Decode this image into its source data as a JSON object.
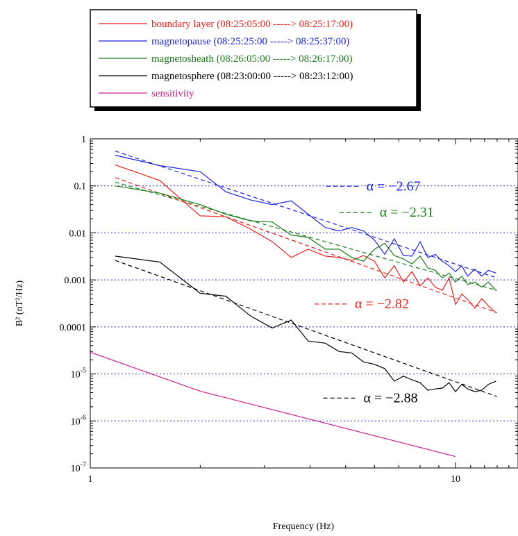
{
  "chart_data": {
    "type": "line",
    "xlabel": "Frequency (Hz)",
    "ylabel": "B² (nT²/Hz)",
    "xscale": "log",
    "yscale": "log",
    "xlim": [
      1,
      15
    ],
    "ylim": [
      1e-07,
      1
    ],
    "x_ticks": [
      {
        "value": 1,
        "label": "1"
      },
      {
        "value": 10,
        "label": "10"
      }
    ],
    "y_ticks": [
      {
        "value": 1,
        "base": "1",
        "exp": ""
      },
      {
        "value": 0.1,
        "base": "0.1",
        "exp": ""
      },
      {
        "value": 0.01,
        "base": "0.01",
        "exp": ""
      },
      {
        "value": 0.001,
        "base": "0.001",
        "exp": ""
      },
      {
        "value": 0.0001,
        "base": "0.0001",
        "exp": ""
      },
      {
        "value": 1e-05,
        "base": "10",
        "exp": "-5"
      },
      {
        "value": 1e-06,
        "base": "10",
        "exp": "-6"
      },
      {
        "value": 1e-07,
        "base": "10",
        "exp": "-7"
      }
    ],
    "grid": "dotted horizontal at each decade",
    "legend_position": "top, above plot",
    "series": [
      {
        "name": "boundary layer (08:25:05:00 -----> 08:25:17:00)",
        "color": "#e8201c",
        "x": [
          1.17,
          1.55,
          2.0,
          2.35,
          2.75,
          3.15,
          3.55,
          3.95,
          4.4,
          4.8,
          5.2,
          5.6,
          6.0,
          6.4,
          6.8,
          7.2,
          7.6,
          8.0,
          8.4,
          8.8,
          9.2,
          9.6,
          10.0,
          10.4,
          10.8,
          11.3,
          11.8,
          12.3,
          12.9
        ],
        "y": [
          0.28,
          0.13,
          0.023,
          0.022,
          0.012,
          0.0065,
          0.003,
          0.0045,
          0.0032,
          0.003,
          0.0026,
          0.0033,
          0.0025,
          0.0011,
          0.002,
          0.0009,
          0.0015,
          0.00075,
          0.0011,
          0.0007,
          0.0006,
          0.0011,
          0.0003,
          0.0005,
          0.00038,
          0.00025,
          0.0004,
          0.00028,
          0.0002
        ]
      },
      {
        "name": "magnetopause  (08:25:25:00 -----> 08:25:37:00)",
        "color": "#1c24e0",
        "x": [
          1.17,
          1.55,
          2.0,
          2.35,
          2.75,
          3.15,
          3.55,
          3.95,
          4.4,
          4.8,
          5.2,
          5.6,
          6.0,
          6.4,
          6.8,
          7.2,
          7.6,
          8.0,
          8.4,
          8.8,
          9.2,
          9.6,
          10.0,
          10.4,
          10.8,
          11.3,
          11.8,
          12.3,
          12.9
        ],
        "y": [
          0.45,
          0.27,
          0.2,
          0.075,
          0.05,
          0.04,
          0.048,
          0.025,
          0.013,
          0.011,
          0.013,
          0.011,
          0.007,
          0.0035,
          0.0075,
          0.0033,
          0.0032,
          0.0065,
          0.003,
          0.0035,
          0.0025,
          0.002,
          0.0015,
          0.002,
          0.0012,
          0.0017,
          0.0012,
          0.0016,
          0.0014
        ]
      },
      {
        "name": "magnetosheath (08:26:05:00 -----> 08:26:17:00)",
        "color": "#1a7a1a",
        "x": [
          1.17,
          1.55,
          2.0,
          2.35,
          2.75,
          3.15,
          3.55,
          3.95,
          4.4,
          4.8,
          5.2,
          5.6,
          6.0,
          6.4,
          6.8,
          7.2,
          7.6,
          8.0,
          8.4,
          8.8,
          9.2,
          9.6,
          10.0,
          10.4,
          10.8,
          11.3,
          11.8,
          12.3,
          12.9
        ],
        "y": [
          0.1,
          0.07,
          0.04,
          0.025,
          0.018,
          0.017,
          0.009,
          0.008,
          0.0045,
          0.0045,
          0.003,
          0.0025,
          0.0045,
          0.006,
          0.0033,
          0.0028,
          0.0022,
          0.0032,
          0.0018,
          0.0016,
          0.0011,
          0.0014,
          0.0009,
          0.0012,
          0.0008,
          0.0009,
          0.0007,
          0.0009,
          0.0006
        ]
      },
      {
        "name": "magnetosphere (08:23:00:00 -----> 08:23:12:00)",
        "color": "#000000",
        "x": [
          1.17,
          1.55,
          2.0,
          2.35,
          2.75,
          3.15,
          3.55,
          3.95,
          4.4,
          4.8,
          5.2,
          5.6,
          6.0,
          6.4,
          6.8,
          7.2,
          7.6,
          8.0,
          8.4,
          8.8,
          9.2,
          9.6,
          10.0,
          10.4,
          10.8,
          11.3,
          11.8,
          12.3,
          12.9
        ],
        "y": [
          0.0032,
          0.0024,
          0.00052,
          0.00045,
          0.00017,
          9.5e-05,
          0.00014,
          5e-05,
          4.5e-05,
          3e-05,
          2.8e-05,
          1.8e-05,
          1.6e-05,
          1.3e-05,
          7e-06,
          9e-06,
          7.5e-06,
          6.5e-06,
          4.5e-06,
          4.8e-06,
          5e-06,
          6.5e-06,
          4.2e-06,
          6e-06,
          4.8e-06,
          4.2e-06,
          4.5e-06,
          6e-06,
          7e-06
        ]
      },
      {
        "name": "sensitivity",
        "color": "#d0208a",
        "x": [
          1.0,
          2.0,
          10.0
        ],
        "y": [
          2.9e-05,
          4.3e-06,
          1.75e-07
        ]
      }
    ],
    "fits": [
      {
        "color": "#1c24e0",
        "x": [
          1.17,
          13.0
        ],
        "y": [
          0.55,
          0.0011
        ],
        "alpha_label": "α = −2.67",
        "label_x": 5.7,
        "label_y": 0.08
      },
      {
        "color": "#1a7a1a",
        "x": [
          1.17,
          13.0
        ],
        "y": [
          0.12,
          0.0006
        ],
        "alpha_label": "α = −2.31",
        "label_x": 6.2,
        "label_y": 0.022
      },
      {
        "color": "#e8201c",
        "x": [
          1.17,
          13.0
        ],
        "y": [
          0.15,
          0.0002
        ],
        "alpha_label": "α = −2.82",
        "label_x": 5.3,
        "label_y": 0.00025
      },
      {
        "color": "#000000",
        "x": [
          1.17,
          13.0
        ],
        "y": [
          0.0026,
          3.3e-06
        ],
        "alpha_label": "α = −2.88",
        "label_x": 5.6,
        "label_y": 2.5e-06
      }
    ]
  }
}
